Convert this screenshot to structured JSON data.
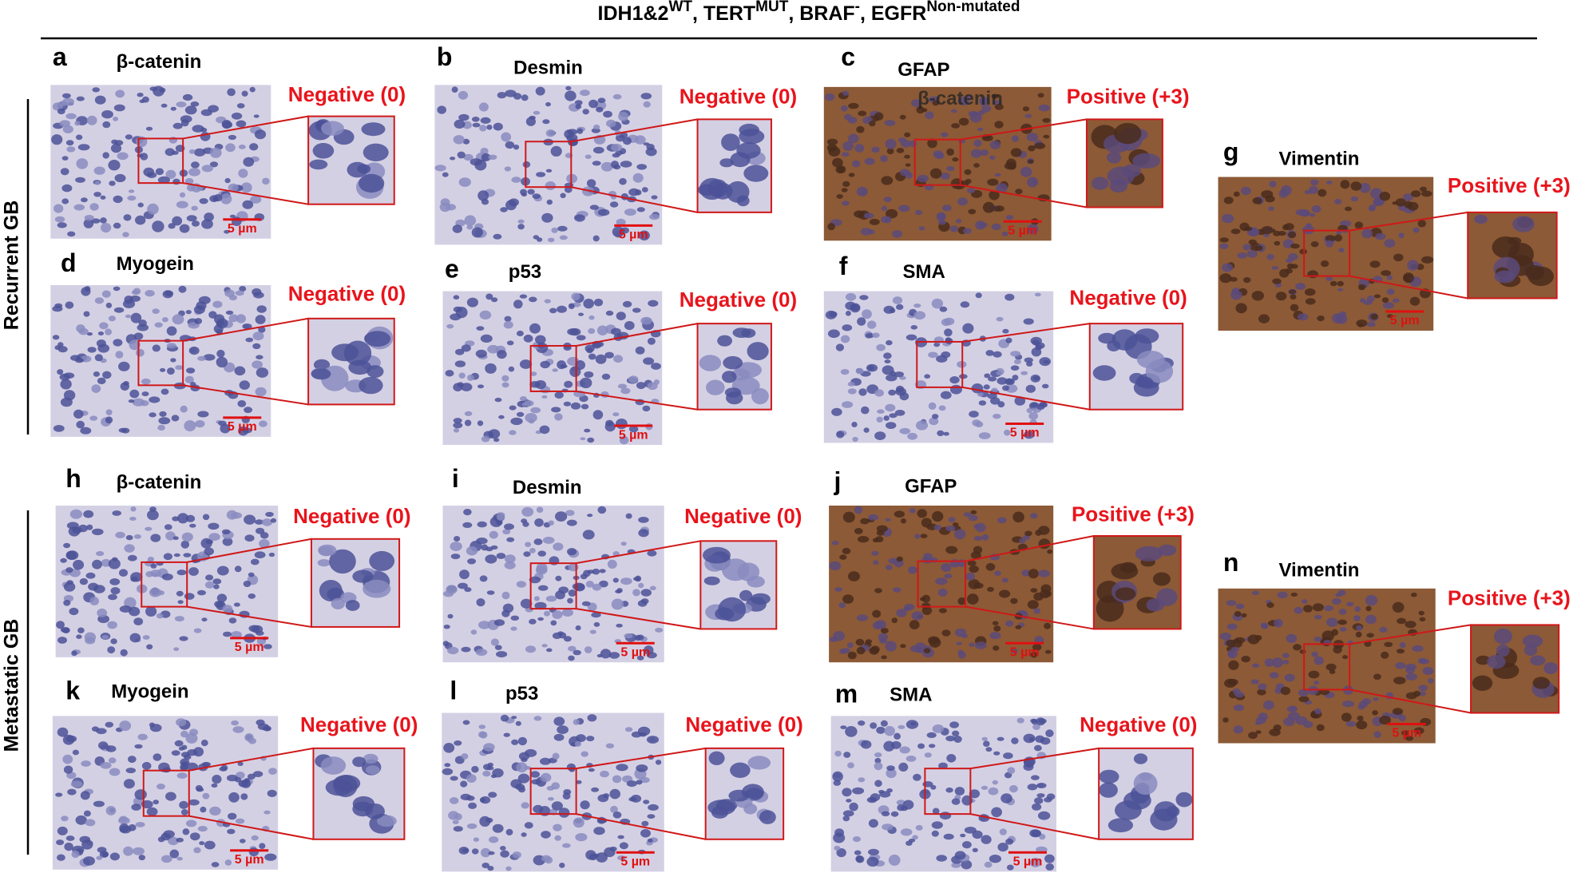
{
  "header": {
    "title": [
      {
        "text": "IDH1&2",
        "sup": "WT"
      },
      {
        "text": ", TERT",
        "sup": "MUT"
      },
      {
        "text": ", BRAF",
        "sup": "-"
      },
      {
        "text": ", EGFR",
        "sup": "Non-mutated"
      }
    ]
  },
  "row_labels": [
    "Recurrent GB",
    "Metastatic GB"
  ],
  "panels": [
    {
      "letter": "a",
      "marker": "β-catenin",
      "result": "Negative (0)",
      "scale": "5 µm"
    },
    {
      "letter": "b",
      "marker": "Desmin",
      "result": "Negative (0)",
      "scale": "5 µm"
    },
    {
      "letter": "c",
      "marker": "GFAP",
      "overlay": "β-catenin",
      "result": "Positive (+3)",
      "scale": "5 µm"
    },
    {
      "letter": "d",
      "marker": "Myogein",
      "result": "Negative (0)",
      "scale": "5 µm"
    },
    {
      "letter": "e",
      "marker": "p53",
      "result": "Negative (0)",
      "scale": "5 µm"
    },
    {
      "letter": "f",
      "marker": "SMA",
      "result": "Negative (0)",
      "scale": "5 µm"
    },
    {
      "letter": "g",
      "marker": "Vimentin",
      "result": "Positive (+3)",
      "scale": "5 µm"
    },
    {
      "letter": "h",
      "marker": "β-catenin",
      "result": "Negative (0)",
      "scale": "5 µm"
    },
    {
      "letter": "i",
      "marker": "Desmin",
      "result": "Negative (0)",
      "scale": "5 µm"
    },
    {
      "letter": "j",
      "marker": "GFAP",
      "result": "Positive (+3)",
      "scale": "5 µm"
    },
    {
      "letter": "k",
      "marker": "Myogein",
      "result": "Negative (0)",
      "scale": "5 µm"
    },
    {
      "letter": "l",
      "marker": "p53",
      "result": "Negative (0)",
      "scale": "5 µm"
    },
    {
      "letter": "m",
      "marker": "SMA",
      "result": "Negative (0)",
      "scale": "5 µm"
    },
    {
      "letter": "n",
      "marker": "Vimentin",
      "result": "Positive (+3)",
      "scale": "5 µm"
    }
  ]
}
